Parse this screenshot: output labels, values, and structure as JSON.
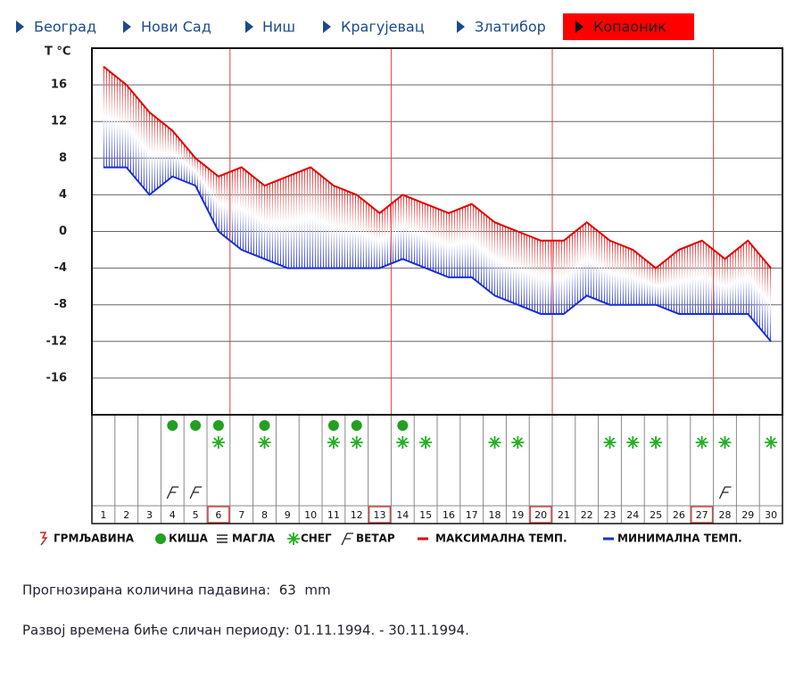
{
  "nav": {
    "items": [
      "Београд",
      "Нови Сад",
      "Ниш",
      "Крагујевац",
      "Златибор",
      "Копаоник"
    ],
    "active": 5
  },
  "chart_data": {
    "type": "line",
    "y_label": "T °C",
    "categories": [
      "1",
      "2",
      "3",
      "4",
      "5",
      "6",
      "7",
      "8",
      "9",
      "10",
      "11",
      "12",
      "13",
      "14",
      "15",
      "16",
      "17",
      "18",
      "19",
      "20",
      "21",
      "22",
      "23",
      "24",
      "25",
      "26",
      "27",
      "28",
      "29",
      "30"
    ],
    "series": [
      {
        "name": "МАКСИМАЛНА ТЕМП.",
        "color": "#e00000",
        "values": [
          18,
          16,
          13,
          11,
          8,
          6,
          7,
          5,
          6,
          7,
          5,
          4,
          2,
          4,
          3,
          2,
          3,
          1,
          0,
          -1,
          -1,
          1,
          -1,
          -2,
          -4,
          -2,
          -1,
          -3,
          -1,
          -4
        ]
      },
      {
        "name": "МИНИМАЛНА ТЕМП.",
        "color": "#1a2fd0",
        "values": [
          7,
          7,
          4,
          6,
          5,
          0,
          -2,
          -3,
          -4,
          -4,
          -4,
          -4,
          -4,
          -3,
          -4,
          -5,
          -5,
          -7,
          -8,
          -9,
          -9,
          -7,
          -8,
          -8,
          -8,
          -9,
          -9,
          -9,
          -9,
          -12
        ]
      }
    ],
    "symbols": [
      {
        "name": "ГРМЉАВИНА",
        "days": []
      },
      {
        "name": "КИША",
        "days": [
          4,
          5,
          6,
          8,
          11,
          12,
          14
        ]
      },
      {
        "name": "МАГЛА",
        "days": []
      },
      {
        "name": "СНЕГ",
        "days": [
          6,
          8,
          11,
          12,
          14,
          15,
          18,
          19,
          23,
          24,
          25,
          27,
          28,
          30
        ]
      },
      {
        "name": "ВЕТАР",
        "days": [
          4,
          5,
          28
        ]
      }
    ],
    "marked_days": [
      6,
      13,
      20,
      27
    ],
    "ylim": [
      -20,
      20
    ],
    "yticks": [
      -16,
      -12,
      -8,
      -4,
      0,
      4,
      8,
      12,
      16
    ],
    "grid": true
  },
  "footer": {
    "precipitation": "Прогнозирана количина падавина:  63  mm",
    "period": "Развој времена биће сличан периоду: 01.11.1994. - 30.11.1994."
  }
}
